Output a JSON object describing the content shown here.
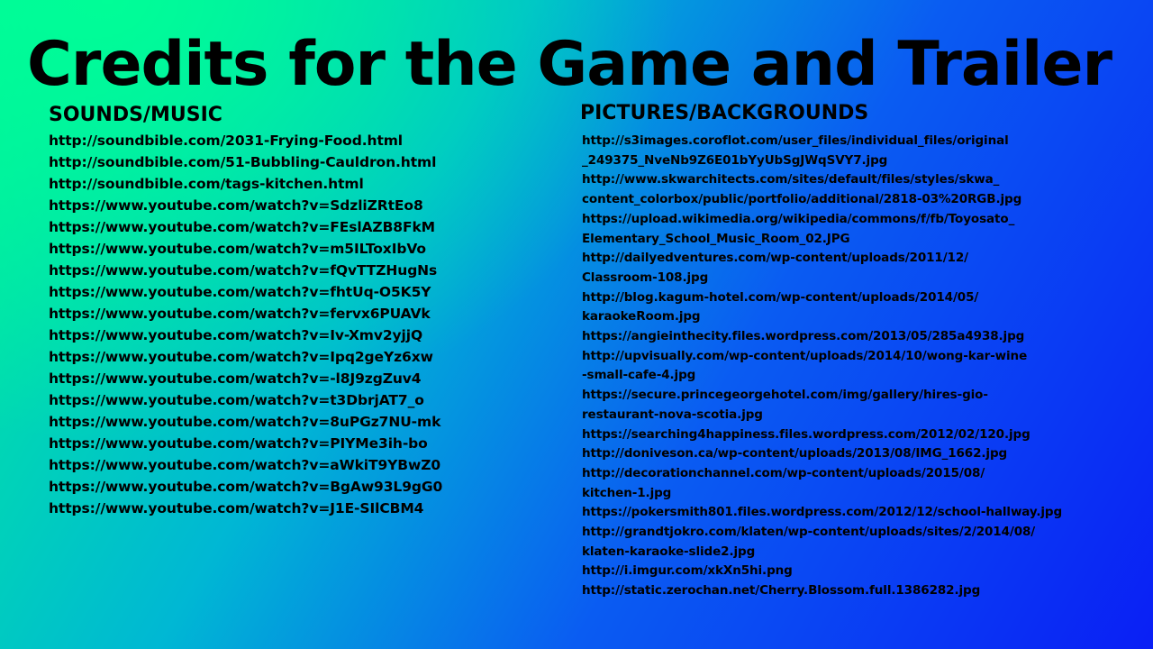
{
  "title": "Credits for the Game and Trailer",
  "sounds": {
    "heading": "SOUNDS/MUSIC",
    "items": [
      "http://soundbible.com/2031-Frying-Food.html",
      "http://soundbible.com/51-Bubbling-Cauldron.html",
      "http://soundbible.com/tags-kitchen.html",
      "https://www.youtube.com/watch?v=SdzliZRtEo8",
      "https://www.youtube.com/watch?v=FEslAZB8FkM",
      "https://www.youtube.com/watch?v=m5ILToxIbVo",
      "https://www.youtube.com/watch?v=fQvTTZHugNs",
      "https://www.youtube.com/watch?v=fhtUq-O5K5Y",
      "https://www.youtube.com/watch?v=fervx6PUAVk",
      "https://www.youtube.com/watch?v=Iv-Xmv2yjjQ",
      "https://www.youtube.com/watch?v=Ipq2geYz6xw",
      "https://www.youtube.com/watch?v=-l8J9zgZuv4",
      "https://www.youtube.com/watch?v=t3DbrjAT7_o",
      "https://www.youtube.com/watch?v=8uPGz7NU-mk",
      "https://www.youtube.com/watch?v=PIYMe3ih-bo",
      "https://www.youtube.com/watch?v=aWkiT9YBwZ0",
      "https://www.youtube.com/watch?v=BgAw93L9gG0",
      "https://www.youtube.com/watch?v=J1E-SIlCBM4"
    ]
  },
  "pictures": {
    "heading": "PICTURES/BACKGROUNDS",
    "items": [
      [
        "http://s3images.coroflot.com/user_files/individual_files/original",
        "_249375_NveNb9Z6E01bYyUbSgJWqSVY7.jpg"
      ],
      [
        "http://www.skwarchitects.com/sites/default/files/styles/skwa_",
        "content_colorbox/public/portfolio/additional/2818-03%20RGB.jpg"
      ],
      [
        "https://upload.wikimedia.org/wikipedia/commons/f/fb/Toyosato_",
        "Elementary_School_Music_Room_02.JPG"
      ],
      [
        "http://dailyedventures.com/wp-content/uploads/2011/12/",
        "Classroom-108.jpg"
      ],
      [
        "http://blog.kagum-hotel.com/wp-content/uploads/2014/05/",
        "karaokeRoom.jpg"
      ],
      [
        "https://angieinthecity.files.wordpress.com/2013/05/285a4938.jpg"
      ],
      [
        "http://upvisually.com/wp-content/uploads/2014/10/wong-kar-wine",
        "-small-cafe-4.jpg"
      ],
      [
        "https://secure.princegeorgehotel.com/img/gallery/hires-gio-",
        "restaurant-nova-scotia.jpg"
      ],
      [
        "https://searching4happiness.files.wordpress.com/2012/02/120.jpg"
      ],
      [
        "http://doniveson.ca/wp-content/uploads/2013/08/IMG_1662.jpg"
      ],
      [
        "http://decorationchannel.com/wp-content/uploads/2015/08/",
        "kitchen-1.jpg"
      ],
      [
        "https://pokersmith801.files.wordpress.com/2012/12/school-hallway.jpg"
      ],
      [
        "http://grandtjokro.com/klaten/wp-content/uploads/sites/2/2014/08/",
        "klaten-karaoke-slide2.jpg"
      ],
      [
        "http://i.imgur.com/xkXn5hi.png"
      ],
      [
        "http://static.zerochan.net/Cherry.Blossom.full.1386282.jpg"
      ]
    ]
  }
}
